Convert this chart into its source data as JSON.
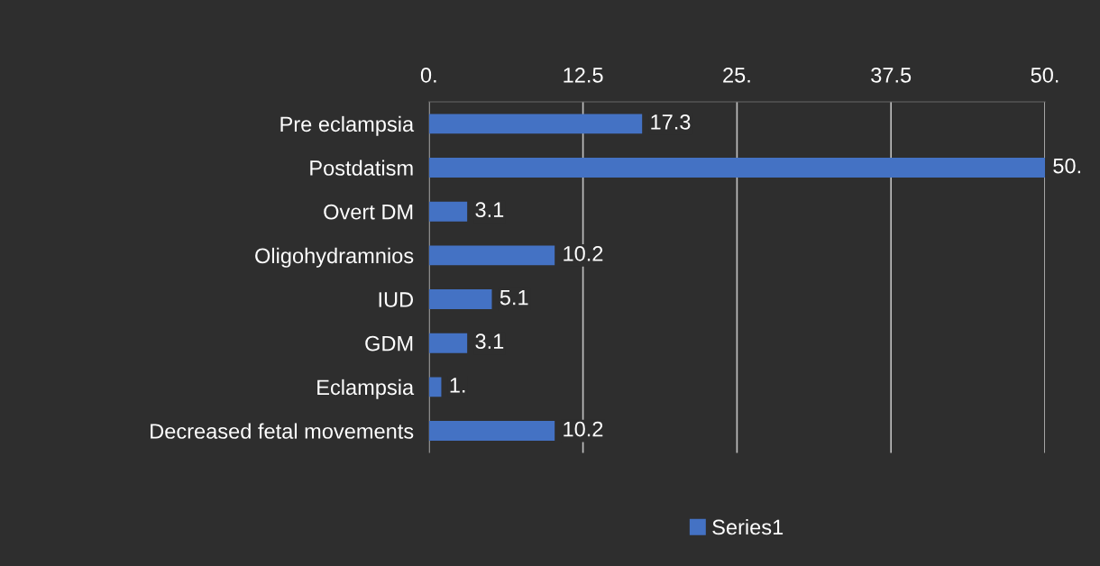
{
  "chart_data": {
    "type": "bar",
    "orientation": "horizontal",
    "categories": [
      "Pre eclampsia",
      "Postdatism",
      "Overt DM",
      "Oligohydramnios",
      "IUD",
      "GDM",
      "Eclampsia",
      "Decreased fetal movements"
    ],
    "series": [
      {
        "name": "Series1",
        "color": "#4472c4",
        "values": [
          17.3,
          50,
          3.1,
          10.2,
          5.1,
          3.1,
          1,
          10.2
        ],
        "value_labels": [
          "17.3",
          "50.",
          "3.1",
          "10.2",
          "5.1",
          "3.1",
          "1.",
          "10.2"
        ]
      }
    ],
    "xlim": [
      0,
      50
    ],
    "xticks": [
      {
        "value": 0,
        "label": "0."
      },
      12.5,
      {
        "value": 25,
        "label": "25."
      },
      37.5,
      {
        "value": 50,
        "label": "50."
      }
    ],
    "grid": "x",
    "legend": "bottom"
  }
}
